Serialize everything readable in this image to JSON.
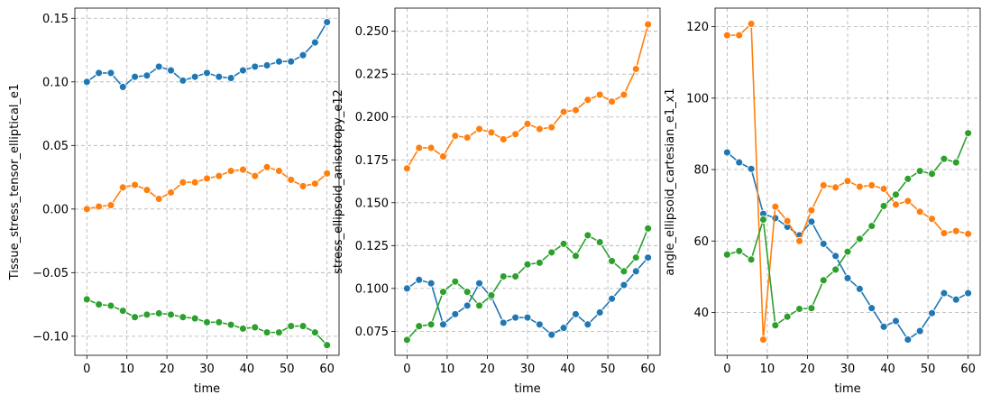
{
  "colors": {
    "blue": "#1f77b4",
    "orange": "#ff7f0e",
    "green": "#2ca02c",
    "grid": "#b0b0b0"
  },
  "chart_data": [
    {
      "type": "line",
      "xlabel": "time",
      "ylabel": "Tissue_stress_tensor_elliptical_e1",
      "xlim": [
        -3,
        63
      ],
      "ylim": [
        -0.115,
        0.158
      ],
      "xticks": [
        0,
        10,
        20,
        30,
        40,
        50,
        60
      ],
      "yticks": [
        -0.1,
        -0.05,
        0.0,
        0.05,
        0.1,
        0.15
      ],
      "ytick_labels": [
        "−0.10",
        "−0.05",
        "0.00",
        "0.05",
        "0.10",
        "0.15"
      ],
      "grid": true,
      "x": [
        0,
        3,
        6,
        9,
        12,
        15,
        18,
        21,
        24,
        27,
        30,
        33,
        36,
        39,
        42,
        45,
        48,
        51,
        54,
        57,
        60
      ],
      "series": [
        {
          "color": "blue",
          "values": [
            0.1,
            0.107,
            0.107,
            0.096,
            0.104,
            0.105,
            0.112,
            0.109,
            0.101,
            0.104,
            0.107,
            0.104,
            0.103,
            0.109,
            0.112,
            0.113,
            0.116,
            0.116,
            0.121,
            0.131,
            0.147
          ]
        },
        {
          "color": "orange",
          "values": [
            0.0,
            0.002,
            0.003,
            0.017,
            0.019,
            0.015,
            0.008,
            0.013,
            0.021,
            0.021,
            0.024,
            0.026,
            0.03,
            0.031,
            0.026,
            0.033,
            0.03,
            0.023,
            0.018,
            0.02,
            0.028
          ]
        },
        {
          "color": "green",
          "values": [
            -0.071,
            -0.075,
            -0.076,
            -0.08,
            -0.085,
            -0.083,
            -0.082,
            -0.083,
            -0.085,
            -0.086,
            -0.089,
            -0.089,
            -0.091,
            -0.094,
            -0.093,
            -0.097,
            -0.097,
            -0.092,
            -0.092,
            -0.097,
            -0.107
          ]
        }
      ]
    },
    {
      "type": "line",
      "xlabel": "time",
      "ylabel": "stress_ellipsoid_anisotropy_e12",
      "xlim": [
        -3,
        63
      ],
      "ylim": [
        0.061,
        0.2635
      ],
      "xticks": [
        0,
        10,
        20,
        30,
        40,
        50,
        60
      ],
      "yticks": [
        0.075,
        0.1,
        0.125,
        0.15,
        0.175,
        0.2,
        0.225,
        0.25
      ],
      "ytick_labels": [
        "0.075",
        "0.100",
        "0.125",
        "0.150",
        "0.175",
        "0.200",
        "0.225",
        "0.250"
      ],
      "grid": true,
      "x": [
        0,
        3,
        6,
        9,
        12,
        15,
        18,
        21,
        24,
        27,
        30,
        33,
        36,
        39,
        42,
        45,
        48,
        51,
        54,
        57,
        60
      ],
      "series": [
        {
          "color": "blue",
          "values": [
            0.1,
            0.105,
            0.103,
            0.079,
            0.085,
            0.09,
            0.103,
            0.095,
            0.08,
            0.083,
            0.083,
            0.079,
            0.073,
            0.077,
            0.085,
            0.079,
            0.086,
            0.094,
            0.102,
            0.11,
            0.118
          ]
        },
        {
          "color": "orange",
          "values": [
            0.17,
            0.182,
            0.182,
            0.177,
            0.189,
            0.188,
            0.193,
            0.191,
            0.187,
            0.19,
            0.196,
            0.193,
            0.194,
            0.203,
            0.204,
            0.21,
            0.213,
            0.209,
            0.213,
            0.228,
            0.254
          ]
        },
        {
          "color": "green",
          "values": [
            0.07,
            0.078,
            0.079,
            0.098,
            0.104,
            0.098,
            0.09,
            0.096,
            0.107,
            0.107,
            0.114,
            0.115,
            0.121,
            0.126,
            0.119,
            0.131,
            0.127,
            0.116,
            0.11,
            0.118,
            0.135
          ]
        }
      ]
    },
    {
      "type": "line",
      "xlabel": "time",
      "ylabel": "angle_ellipsoid_cartesian_e1_x1",
      "xlim": [
        -3,
        63
      ],
      "ylim": [
        28.0,
        125.2
      ],
      "xticks": [
        0,
        10,
        20,
        30,
        40,
        50,
        60
      ],
      "yticks": [
        40,
        60,
        80,
        100,
        120
      ],
      "ytick_labels": [
        "40",
        "60",
        "80",
        "100",
        "120"
      ],
      "grid": true,
      "x": [
        0,
        3,
        6,
        9,
        12,
        15,
        18,
        21,
        24,
        27,
        30,
        33,
        36,
        39,
        42,
        45,
        48,
        51,
        54,
        57,
        60
      ],
      "series": [
        {
          "color": "blue",
          "values": [
            84.8,
            82.0,
            80.2,
            67.6,
            66.4,
            64.0,
            61.6,
            65.4,
            59.2,
            55.8,
            49.6,
            46.6,
            41.2,
            36.0,
            37.6,
            32.4,
            34.8,
            39.8,
            45.4,
            43.6,
            45.4
          ]
        },
        {
          "color": "orange",
          "values": [
            117.6,
            117.6,
            120.8,
            32.4,
            69.6,
            65.6,
            60.0,
            68.6,
            75.6,
            75.0,
            76.8,
            75.2,
            75.6,
            74.6,
            70.2,
            71.2,
            68.2,
            66.2,
            62.2,
            62.8,
            62.0
          ]
        },
        {
          "color": "green",
          "values": [
            56.2,
            57.2,
            54.8,
            66.0,
            36.4,
            38.8,
            41.0,
            41.2,
            49.0,
            52.0,
            57.0,
            60.6,
            64.2,
            69.8,
            73.0,
            77.4,
            79.6,
            78.8,
            83.0,
            82.0,
            90.2
          ]
        }
      ]
    }
  ]
}
